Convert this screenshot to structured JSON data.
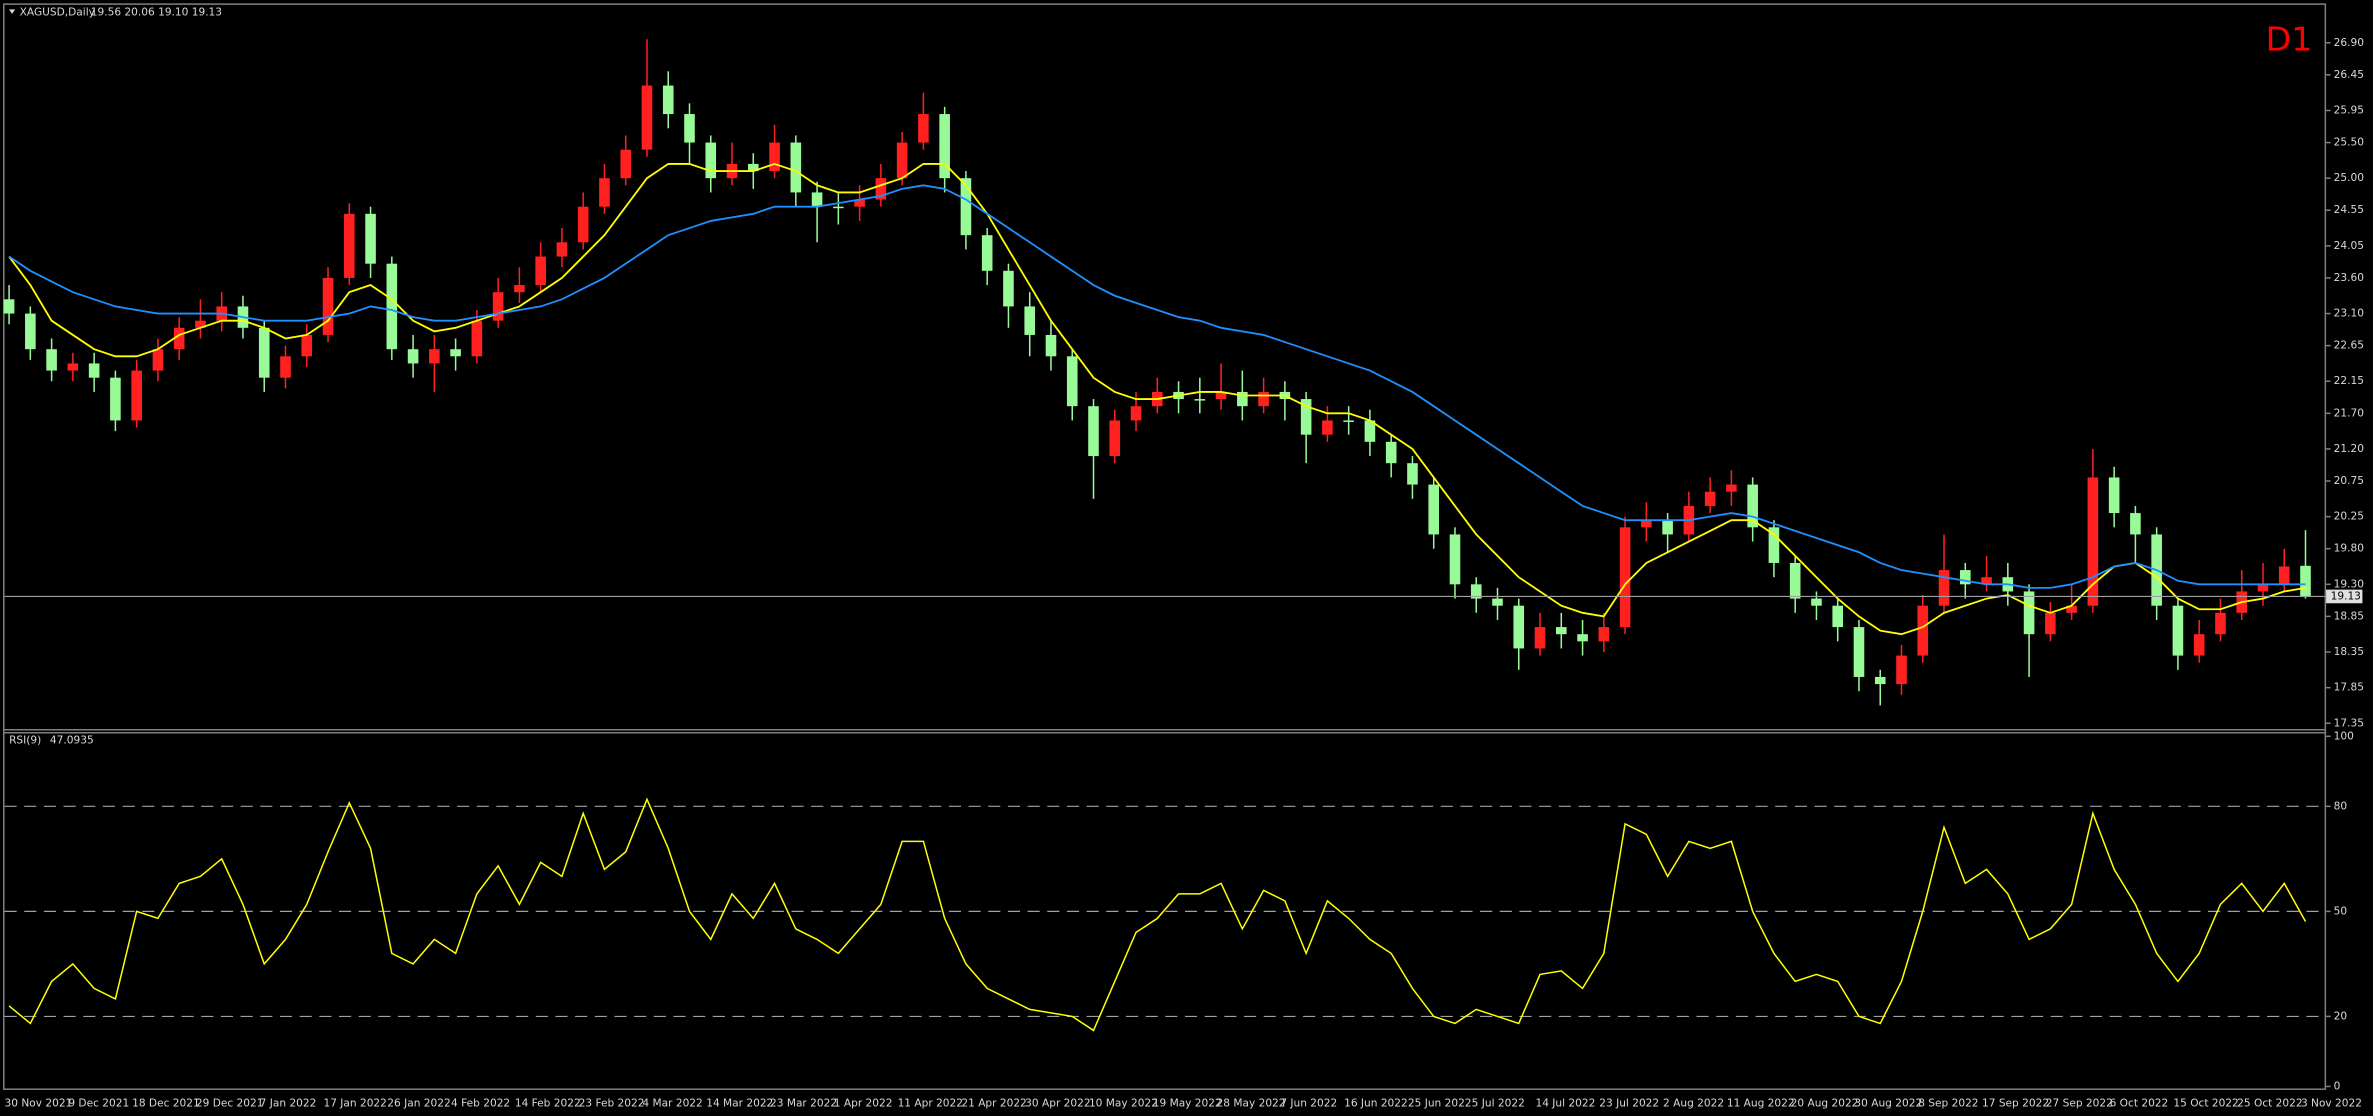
{
  "chart_data": {
    "type": "candlestick",
    "title": "XAGUSD,Daily",
    "subtitle": "19.56 20.06 19.10 19.13",
    "timeframe": "D1",
    "categories": [
      "30 Nov 2021",
      null,
      null,
      "9 Dec 2021",
      null,
      null,
      "18 Dec 2021",
      null,
      null,
      "29 Dec 2021",
      null,
      null,
      "7 Jan 2022",
      null,
      null,
      "17 Jan 2022",
      null,
      null,
      "26 Jan 2022",
      null,
      null,
      "4 Feb 2022",
      null,
      null,
      "14 Feb 2022",
      null,
      null,
      "23 Feb 2022",
      null,
      null,
      "4 Mar 2022",
      null,
      null,
      "14 Mar 2022",
      null,
      null,
      "23 Mar 2022",
      null,
      null,
      "1 Apr 2022",
      null,
      null,
      "11 Apr 2022",
      null,
      null,
      "21 Apr 2022",
      null,
      null,
      "30 Apr 2022",
      null,
      null,
      "10 May 2022",
      null,
      null,
      "19 May 2022",
      null,
      null,
      "28 May 2022",
      null,
      null,
      "7 Jun 2022",
      null,
      null,
      "16 Jun 2022",
      null,
      null,
      "25 Jun 2022",
      null,
      null,
      "5 Jul 2022",
      null,
      null,
      "14 Jul 2022",
      null,
      null,
      "23 Jul 2022",
      null,
      null,
      "2 Aug 2022",
      null,
      null,
      "11 Aug 2022",
      null,
      null,
      "20 Aug 2022",
      null,
      null,
      "30 Aug 2022",
      null,
      null,
      "8 Sep 2022",
      null,
      null,
      "17 Sep 2022",
      null,
      null,
      "27 Sep 2022",
      null,
      null,
      "6 Oct 2022",
      null,
      null,
      "15 Oct 2022",
      null,
      null,
      "25 Oct 2022",
      null,
      null,
      "3 Nov 2022"
    ],
    "open": [
      23.3,
      23.1,
      22.6,
      22.3,
      22.4,
      22.2,
      21.6,
      22.3,
      22.6,
      22.9,
      23.0,
      23.2,
      22.9,
      22.2,
      22.5,
      22.8,
      23.6,
      24.5,
      23.8,
      22.6,
      22.4,
      22.6,
      22.5,
      23.0,
      23.4,
      23.5,
      23.9,
      24.1,
      24.6,
      25.0,
      25.4,
      26.3,
      25.9,
      25.5,
      25.0,
      25.2,
      25.1,
      25.5,
      24.8,
      24.6,
      24.6,
      24.7,
      25.0,
      25.5,
      25.9,
      25.0,
      24.2,
      23.7,
      23.2,
      22.8,
      22.5,
      21.8,
      21.1,
      21.6,
      21.8,
      22.0,
      21.9,
      21.9,
      22.0,
      21.8,
      22.0,
      21.9,
      21.4,
      21.6,
      21.6,
      21.3,
      21.0,
      20.7,
      20.0,
      19.3,
      19.1,
      19.0,
      18.4,
      18.7,
      18.6,
      18.5,
      18.7,
      20.1,
      20.2,
      20.0,
      20.4,
      20.6,
      20.7,
      20.1,
      19.6,
      19.1,
      19.0,
      18.7,
      18.0,
      17.9,
      18.3,
      19.0,
      19.5,
      19.3,
      19.4,
      19.2,
      18.6,
      18.9,
      19.0,
      20.8,
      20.3,
      20.0,
      19.0,
      18.3,
      18.6,
      18.9,
      19.2,
      19.3,
      19.56
    ],
    "high": [
      23.5,
      23.2,
      22.75,
      22.55,
      22.55,
      22.3,
      22.45,
      22.75,
      23.05,
      23.3,
      23.4,
      23.35,
      23.0,
      22.65,
      22.95,
      23.75,
      24.65,
      24.6,
      23.9,
      22.8,
      22.8,
      22.75,
      23.15,
      23.6,
      23.75,
      24.1,
      24.3,
      24.8,
      25.2,
      25.6,
      26.95,
      26.5,
      26.05,
      25.6,
      25.5,
      25.35,
      25.75,
      25.6,
      24.95,
      24.8,
      24.9,
      25.2,
      25.65,
      26.2,
      26.0,
      25.1,
      24.3,
      23.8,
      23.4,
      23.0,
      22.6,
      21.9,
      21.75,
      22.0,
      22.2,
      22.15,
      22.2,
      22.4,
      22.3,
      22.2,
      22.15,
      22.0,
      21.8,
      21.8,
      21.75,
      21.4,
      21.1,
      20.8,
      20.1,
      19.4,
      19.25,
      19.1,
      18.9,
      18.9,
      18.8,
      18.9,
      20.25,
      20.45,
      20.3,
      20.6,
      20.8,
      20.9,
      20.8,
      20.2,
      19.7,
      19.2,
      19.1,
      18.8,
      18.1,
      18.45,
      19.15,
      20.0,
      19.6,
      19.7,
      19.6,
      19.3,
      19.05,
      19.3,
      21.2,
      20.95,
      20.4,
      20.1,
      19.1,
      18.8,
      19.1,
      19.5,
      19.6,
      19.8,
      20.06
    ],
    "low": [
      22.95,
      22.45,
      22.15,
      22.15,
      22.0,
      21.45,
      21.5,
      22.15,
      22.45,
      22.75,
      22.85,
      22.75,
      22.0,
      22.05,
      22.35,
      22.7,
      23.5,
      23.6,
      22.45,
      22.2,
      22.0,
      22.3,
      22.4,
      22.9,
      23.25,
      23.4,
      23.75,
      24.0,
      24.5,
      24.9,
      25.3,
      25.7,
      25.2,
      24.8,
      24.9,
      24.85,
      25.0,
      24.6,
      24.1,
      24.35,
      24.4,
      24.6,
      24.9,
      25.4,
      24.8,
      24.0,
      23.5,
      22.9,
      22.5,
      22.3,
      21.6,
      20.5,
      21.0,
      21.45,
      21.7,
      21.7,
      21.7,
      21.75,
      21.6,
      21.7,
      21.6,
      21.0,
      21.3,
      21.4,
      21.1,
      20.8,
      20.5,
      19.8,
      19.1,
      18.9,
      18.8,
      18.1,
      18.3,
      18.4,
      18.3,
      18.35,
      18.6,
      19.9,
      19.75,
      19.9,
      20.3,
      20.4,
      19.9,
      19.4,
      18.9,
      18.8,
      18.5,
      17.8,
      17.6,
      17.75,
      18.2,
      18.9,
      19.1,
      19.2,
      19.0,
      18.0,
      18.5,
      18.8,
      18.9,
      20.1,
      19.6,
      18.8,
      18.1,
      18.2,
      18.5,
      18.8,
      19.0,
      19.2,
      19.1
    ],
    "close": [
      23.1,
      22.6,
      22.3,
      22.4,
      22.2,
      21.6,
      22.3,
      22.6,
      22.9,
      23.0,
      23.2,
      22.9,
      22.2,
      22.5,
      22.8,
      23.6,
      24.5,
      23.8,
      22.6,
      22.4,
      22.6,
      22.5,
      23.0,
      23.4,
      23.5,
      23.9,
      24.1,
      24.6,
      25.0,
      25.4,
      26.3,
      25.9,
      25.5,
      25.0,
      25.2,
      25.1,
      25.5,
      24.8,
      24.6,
      24.6,
      24.7,
      25.0,
      25.5,
      25.9,
      25.0,
      24.2,
      23.7,
      23.2,
      22.8,
      22.5,
      21.8,
      21.1,
      21.6,
      21.8,
      22.0,
      21.9,
      21.9,
      22.0,
      21.8,
      22.0,
      21.9,
      21.4,
      21.6,
      21.6,
      21.3,
      21.0,
      20.7,
      20.0,
      19.3,
      19.1,
      19.0,
      18.4,
      18.7,
      18.6,
      18.5,
      18.7,
      20.1,
      20.2,
      20.0,
      20.4,
      20.6,
      20.7,
      20.1,
      19.6,
      19.1,
      19.0,
      18.7,
      18.0,
      17.9,
      18.3,
      19.0,
      19.5,
      19.3,
      19.4,
      19.2,
      18.6,
      18.9,
      19.0,
      20.8,
      20.3,
      20.0,
      19.0,
      18.3,
      18.6,
      18.9,
      19.2,
      19.3,
      19.55,
      19.13
    ],
    "up_color": "#ff2020",
    "down_color": "#98fb98",
    "overlays": [
      {
        "color": "#ffff00",
        "values": [
          23.9,
          23.5,
          23.0,
          22.8,
          22.6,
          22.5,
          22.5,
          22.6,
          22.8,
          22.9,
          23.0,
          23.0,
          22.9,
          22.75,
          22.8,
          23.0,
          23.4,
          23.5,
          23.3,
          23.0,
          22.85,
          22.9,
          23.0,
          23.1,
          23.2,
          23.4,
          23.6,
          23.9,
          24.2,
          24.6,
          25.0,
          25.2,
          25.2,
          25.1,
          25.1,
          25.1,
          25.2,
          25.1,
          24.9,
          24.8,
          24.8,
          24.9,
          25.0,
          25.2,
          25.2,
          24.9,
          24.5,
          24.0,
          23.5,
          23.0,
          22.6,
          22.2,
          22.0,
          21.9,
          21.9,
          21.95,
          22.0,
          22.0,
          21.95,
          21.95,
          21.95,
          21.8,
          21.7,
          21.7,
          21.6,
          21.4,
          21.2,
          20.8,
          20.4,
          20.0,
          19.7,
          19.4,
          19.2,
          19.0,
          18.9,
          18.85,
          19.3,
          19.6,
          19.75,
          19.9,
          20.05,
          20.2,
          20.2,
          20.0,
          19.7,
          19.4,
          19.1,
          18.85,
          18.65,
          18.6,
          18.7,
          18.9,
          19.0,
          19.1,
          19.15,
          19.0,
          18.9,
          19.0,
          19.3,
          19.55,
          19.6,
          19.4,
          19.1,
          18.95,
          18.95,
          19.05,
          19.1,
          19.2,
          19.25
        ]
      },
      {
        "color": "#1e90ff",
        "values": [
          23.9,
          23.7,
          23.55,
          23.4,
          23.3,
          23.2,
          23.15,
          23.1,
          23.1,
          23.1,
          23.1,
          23.05,
          23.0,
          23.0,
          23.0,
          23.05,
          23.1,
          23.2,
          23.15,
          23.05,
          23.0,
          23.0,
          23.05,
          23.1,
          23.15,
          23.2,
          23.3,
          23.45,
          23.6,
          23.8,
          24.0,
          24.2,
          24.3,
          24.4,
          24.45,
          24.5,
          24.6,
          24.6,
          24.6,
          24.65,
          24.7,
          24.75,
          24.85,
          24.9,
          24.85,
          24.7,
          24.5,
          24.3,
          24.1,
          23.9,
          23.7,
          23.5,
          23.35,
          23.25,
          23.15,
          23.05,
          23.0,
          22.9,
          22.85,
          22.8,
          22.7,
          22.6,
          22.5,
          22.4,
          22.3,
          22.15,
          22.0,
          21.8,
          21.6,
          21.4,
          21.2,
          21.0,
          20.8,
          20.6,
          20.4,
          20.3,
          20.2,
          20.2,
          20.2,
          20.2,
          20.25,
          20.3,
          20.25,
          20.15,
          20.05,
          19.95,
          19.85,
          19.75,
          19.6,
          19.5,
          19.45,
          19.4,
          19.35,
          19.3,
          19.3,
          19.25,
          19.25,
          19.3,
          19.4,
          19.55,
          19.6,
          19.5,
          19.35,
          19.3,
          19.3,
          19.3,
          19.3,
          19.3,
          19.3
        ]
      }
    ],
    "ylim": [
      17.28,
      27.39
    ],
    "yticks": [
      {
        "value": 26.9,
        "label": "26.90"
      },
      26.45,
      25.95,
      {
        "value": 25.5,
        "label": "25.50"
      },
      {
        "value": 25,
        "label": "25.00"
      },
      24.55,
      24.05,
      {
        "value": 23.6,
        "label": "23.60"
      },
      {
        "value": 23.1,
        "label": "23.10"
      },
      22.65,
      22.15,
      {
        "value": 21.7,
        "label": "21.70"
      },
      {
        "value": 21.2,
        "label": "21.20"
      },
      20.75,
      20.25,
      {
        "value": 19.8,
        "label": "19.80"
      },
      {
        "value": 19.3,
        "label": "19.30"
      },
      18.85,
      18.35,
      17.85,
      17.35
    ],
    "last_price": 19.13,
    "grid": false,
    "indicator": {
      "type": "line",
      "title": "RSI(9)",
      "color": "#ffff00",
      "values": [
        23,
        18,
        30,
        35,
        28,
        25,
        50,
        48,
        58,
        60,
        65,
        52,
        35,
        42,
        52,
        67,
        81,
        68,
        38,
        35,
        42,
        38,
        55,
        63,
        52,
        64,
        60,
        78,
        62,
        67,
        82,
        68,
        50,
        42,
        55,
        48,
        58,
        45,
        42,
        38,
        45,
        52,
        70,
        70,
        48,
        35,
        28,
        25,
        22,
        21,
        20,
        16,
        30,
        44,
        48,
        55,
        55,
        58,
        45,
        56,
        53,
        38,
        53,
        48,
        42,
        38,
        28,
        20,
        18,
        22,
        20,
        18,
        32,
        33,
        28,
        38,
        75,
        72,
        60,
        70,
        68,
        70,
        50,
        38,
        30,
        32,
        30,
        20,
        18,
        30,
        50,
        74,
        58,
        62,
        55,
        42,
        45,
        52,
        78,
        62,
        52,
        38,
        30,
        38,
        52,
        58,
        50,
        58,
        47.0935
      ],
      "ylim": [
        -1,
        101
      ],
      "yticks": [
        100,
        80,
        50,
        20,
        0
      ],
      "levels": [
        80,
        50,
        20
      ]
    }
  }
}
